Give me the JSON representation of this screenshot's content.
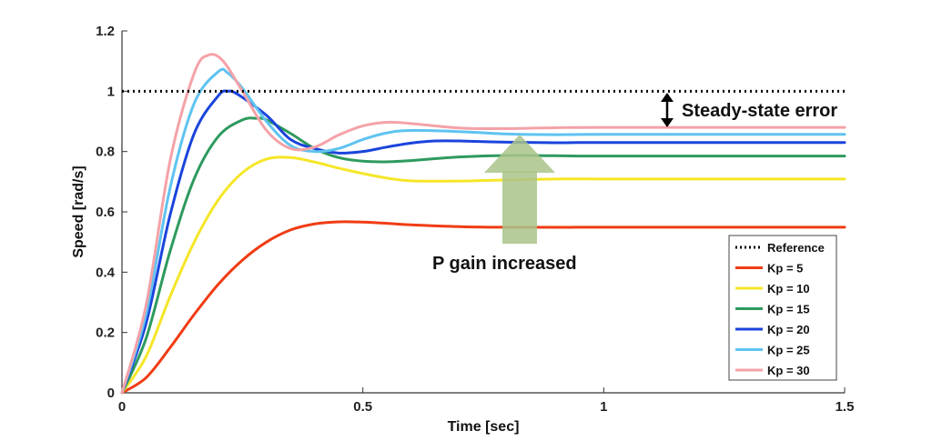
{
  "chart_data": {
    "type": "line",
    "xlabel": "Time [sec]",
    "ylabel": "Speed [rad/s]",
    "xlim": [
      0,
      1.5
    ],
    "ylim": [
      0,
      1.2
    ],
    "xticks": [
      0,
      0.5,
      1,
      1.5
    ],
    "xtick_labels": [
      "0",
      "0.5",
      "1",
      "1.5"
    ],
    "yticks": [
      0,
      0.2,
      0.4,
      0.6,
      0.8,
      1,
      1.2
    ],
    "ytick_labels": [
      "0",
      "0.2",
      "0.4",
      "0.6",
      "0.8",
      "1",
      "1.2"
    ],
    "grid": false,
    "legend_position": "bottom-right",
    "annotations": {
      "steady_state": "Steady-state error",
      "gain": "P gain increased"
    },
    "series": [
      {
        "name": "Reference",
        "color": "#000000",
        "style": "dotted",
        "points": [
          [
            0,
            1.0
          ],
          [
            1.5,
            1.0
          ]
        ]
      },
      {
        "name": "Kp = 5",
        "color": "#f03c14",
        "style": "solid",
        "points": [
          [
            0,
            0
          ],
          [
            0.05,
            0.05
          ],
          [
            0.1,
            0.15
          ],
          [
            0.15,
            0.26
          ],
          [
            0.2,
            0.36
          ],
          [
            0.25,
            0.44
          ],
          [
            0.3,
            0.5
          ],
          [
            0.35,
            0.54
          ],
          [
            0.4,
            0.56
          ],
          [
            0.45,
            0.567
          ],
          [
            0.5,
            0.566
          ],
          [
            0.55,
            0.562
          ],
          [
            0.6,
            0.557
          ],
          [
            0.7,
            0.551
          ],
          [
            0.8,
            0.549
          ],
          [
            1.0,
            0.549
          ],
          [
            1.2,
            0.549
          ],
          [
            1.5,
            0.549
          ]
        ]
      },
      {
        "name": "Kp = 10",
        "color": "#f5e628",
        "style": "solid",
        "points": [
          [
            0,
            0
          ],
          [
            0.05,
            0.12
          ],
          [
            0.1,
            0.32
          ],
          [
            0.15,
            0.5
          ],
          [
            0.2,
            0.64
          ],
          [
            0.25,
            0.73
          ],
          [
            0.3,
            0.775
          ],
          [
            0.35,
            0.78
          ],
          [
            0.4,
            0.765
          ],
          [
            0.45,
            0.745
          ],
          [
            0.5,
            0.727
          ],
          [
            0.55,
            0.712
          ],
          [
            0.6,
            0.703
          ],
          [
            0.7,
            0.702
          ],
          [
            0.8,
            0.706
          ],
          [
            0.9,
            0.709
          ],
          [
            1.0,
            0.709
          ],
          [
            1.5,
            0.709
          ]
        ]
      },
      {
        "name": "Kp = 15",
        "color": "#2e9a5e",
        "style": "solid",
        "points": [
          [
            0,
            0
          ],
          [
            0.05,
            0.18
          ],
          [
            0.1,
            0.47
          ],
          [
            0.15,
            0.71
          ],
          [
            0.2,
            0.85
          ],
          [
            0.25,
            0.905
          ],
          [
            0.28,
            0.91
          ],
          [
            0.3,
            0.905
          ],
          [
            0.35,
            0.86
          ],
          [
            0.4,
            0.81
          ],
          [
            0.45,
            0.78
          ],
          [
            0.5,
            0.768
          ],
          [
            0.55,
            0.766
          ],
          [
            0.6,
            0.77
          ],
          [
            0.7,
            0.782
          ],
          [
            0.8,
            0.787
          ],
          [
            0.9,
            0.786
          ],
          [
            1.0,
            0.785
          ],
          [
            1.5,
            0.785
          ]
        ]
      },
      {
        "name": "Kp = 20",
        "color": "#1a44dc",
        "style": "solid",
        "points": [
          [
            0,
            0
          ],
          [
            0.05,
            0.23
          ],
          [
            0.1,
            0.59
          ],
          [
            0.15,
            0.86
          ],
          [
            0.2,
            0.985
          ],
          [
            0.22,
            1.0
          ],
          [
            0.24,
            0.99
          ],
          [
            0.3,
            0.92
          ],
          [
            0.35,
            0.84
          ],
          [
            0.4,
            0.81
          ],
          [
            0.45,
            0.795
          ],
          [
            0.5,
            0.8
          ],
          [
            0.55,
            0.815
          ],
          [
            0.6,
            0.828
          ],
          [
            0.65,
            0.835
          ],
          [
            0.7,
            0.835
          ],
          [
            0.8,
            0.831
          ],
          [
            0.9,
            0.829
          ],
          [
            1.0,
            0.83
          ],
          [
            1.5,
            0.83
          ]
        ]
      },
      {
        "name": "Kp = 25",
        "color": "#5fc3f0",
        "style": "solid",
        "points": [
          [
            0,
            0
          ],
          [
            0.05,
            0.26
          ],
          [
            0.1,
            0.68
          ],
          [
            0.15,
            0.96
          ],
          [
            0.2,
            1.065
          ],
          [
            0.22,
            1.06
          ],
          [
            0.25,
            1.01
          ],
          [
            0.3,
            0.9
          ],
          [
            0.35,
            0.82
          ],
          [
            0.4,
            0.8
          ],
          [
            0.45,
            0.81
          ],
          [
            0.5,
            0.84
          ],
          [
            0.55,
            0.862
          ],
          [
            0.6,
            0.87
          ],
          [
            0.7,
            0.866
          ],
          [
            0.8,
            0.858
          ],
          [
            0.9,
            0.856
          ],
          [
            1.0,
            0.857
          ],
          [
            1.5,
            0.857
          ]
        ]
      },
      {
        "name": "Kp = 30",
        "color": "#f4a2a8",
        "style": "solid",
        "points": [
          [
            0,
            0
          ],
          [
            0.05,
            0.29
          ],
          [
            0.1,
            0.77
          ],
          [
            0.15,
            1.06
          ],
          [
            0.18,
            1.12
          ],
          [
            0.21,
            1.1
          ],
          [
            0.25,
            1.0
          ],
          [
            0.3,
            0.87
          ],
          [
            0.35,
            0.81
          ],
          [
            0.4,
            0.815
          ],
          [
            0.45,
            0.855
          ],
          [
            0.5,
            0.885
          ],
          [
            0.55,
            0.897
          ],
          [
            0.6,
            0.893
          ],
          [
            0.7,
            0.878
          ],
          [
            0.8,
            0.876
          ],
          [
            0.9,
            0.879
          ],
          [
            1.0,
            0.88
          ],
          [
            1.5,
            0.88
          ]
        ]
      }
    ]
  }
}
